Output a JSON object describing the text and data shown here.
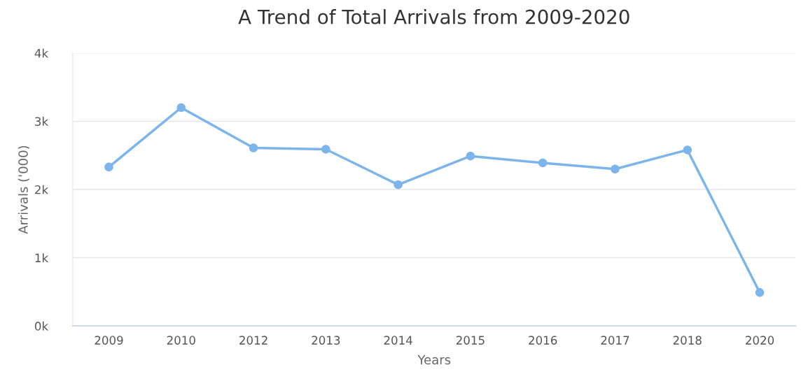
{
  "chart_data": {
    "type": "line",
    "title": "A Trend of Total Arrivals from 2009-2020",
    "xlabel": "Years",
    "ylabel": "Arrivals ('000)",
    "categories": [
      "2009",
      "2010",
      "2012",
      "2013",
      "2014",
      "2015",
      "2016",
      "2017",
      "2018",
      "2020"
    ],
    "series": [
      {
        "color": "#7cb5ec",
        "values": [
          2330,
          3200,
          2610,
          2590,
          2070,
          2490,
          2390,
          2300,
          2580,
          490
        ]
      }
    ],
    "ylim": [
      0,
      4000
    ],
    "yticks": [
      {
        "value": 0,
        "label": "0k"
      },
      {
        "value": 1000,
        "label": "1k"
      },
      {
        "value": 2000,
        "label": "2k"
      },
      {
        "value": 3000,
        "label": "3k"
      },
      {
        "value": 4000,
        "label": "4k"
      }
    ],
    "grid": "y",
    "marker": "circle",
    "line_style": "solid"
  }
}
